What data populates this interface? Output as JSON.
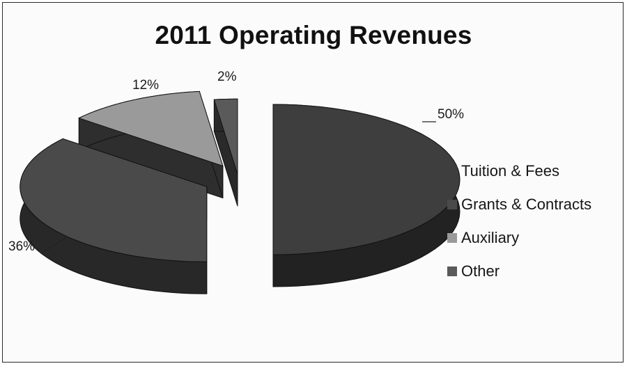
{
  "chart_data": {
    "type": "pie",
    "title": "2011 Operating Revenues",
    "slices": [
      {
        "label": "Tuition & Fees",
        "value": 50,
        "value_label": "50%",
        "color": "#3e3e3e",
        "side": "#222222"
      },
      {
        "label": "Grants & Contracts",
        "value": 36,
        "value_label": "36%",
        "color": "#4a4a4a",
        "side": "#282828"
      },
      {
        "label": "Auxiliary",
        "value": 12,
        "value_label": "12%",
        "color": "#9a9a9a",
        "side": "#2e2e2e"
      },
      {
        "label": "Other",
        "value": 2,
        "value_label": "2%",
        "color": "#5a5a5a",
        "side": "#2a2a2a"
      }
    ],
    "legend_position": "right",
    "style": "3d-exploded-pie"
  }
}
